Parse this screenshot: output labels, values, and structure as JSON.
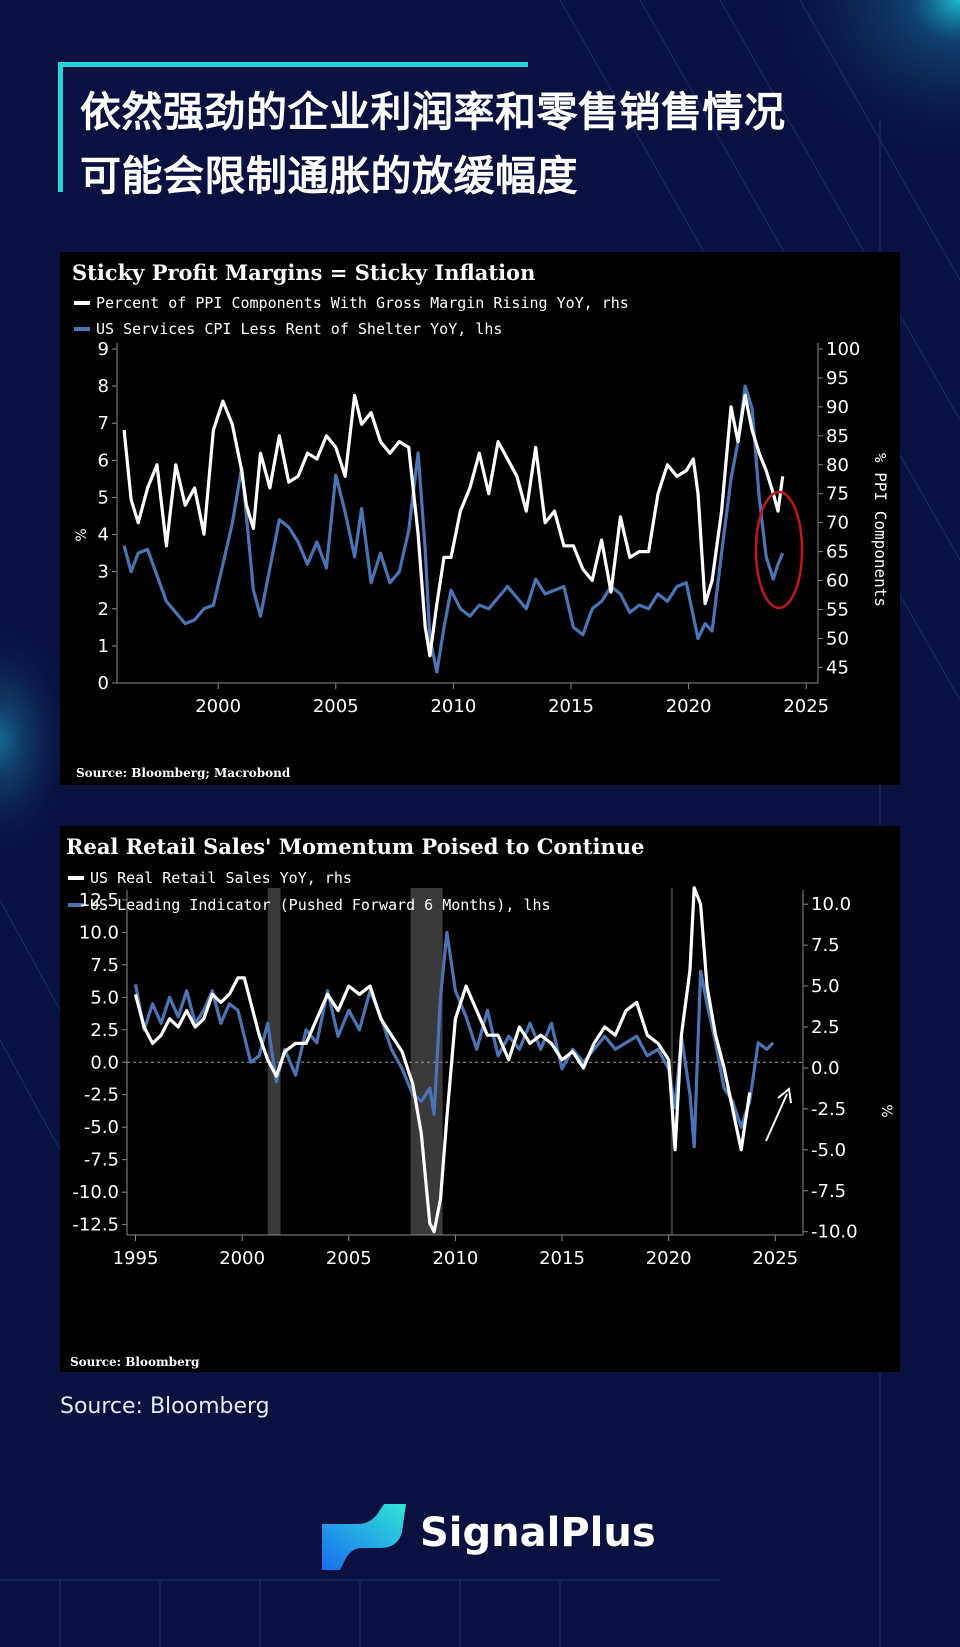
{
  "page": {
    "title_line1": "依然强劲的企业利润率和零售销售情况",
    "title_line2": "可能会限制通胀的放缓幅度",
    "source_caption": "Source: Bloomberg",
    "brand_name": "SignalPlus",
    "colors": {
      "background": "#0a1140",
      "accent": "#25d4dd",
      "series_white": "#ffffff",
      "series_blue": "#4a74b4",
      "highlight_red": "#c01818"
    }
  },
  "chart_data": [
    {
      "type": "line",
      "title": "Sticky Profit Margins = Sticky Inflation",
      "legend": [
        "Percent of PPI Components With Gross Margin Rising YoY, rhs",
        "US Services CPI Less Rent of Shelter YoY, lhs"
      ],
      "source": "Source: Bloomberg; Macrobond",
      "x_ticks": [
        "2000",
        "2005",
        "2010",
        "2015",
        "2020",
        "2025"
      ],
      "xlim": [
        1995.7,
        2025.5
      ],
      "left_axis": {
        "label": "%",
        "ticks": [
          "0",
          "1",
          "2",
          "3",
          "4",
          "5",
          "6",
          "7",
          "8",
          "9"
        ],
        "ylim": [
          0,
          9
        ]
      },
      "right_axis": {
        "label": "% PPI Components",
        "ticks": [
          "45",
          "50",
          "55",
          "60",
          "65",
          "70",
          "75",
          "80",
          "85",
          "90",
          "95",
          "100"
        ],
        "ylim": [
          42.3,
          100
        ]
      },
      "annotation": "red ellipse around 2023-2024 values",
      "series": [
        {
          "name": "Percent of PPI Components With Gross Margin Rising YoY",
          "axis": "right",
          "color": "#ffffff",
          "x": [
            1996.0,
            1996.3,
            1996.6,
            1997.0,
            1997.4,
            1997.8,
            1998.2,
            1998.6,
            1999.0,
            1999.4,
            1999.8,
            2000.2,
            2000.6,
            2001.0,
            2001.2,
            2001.5,
            2001.8,
            2002.2,
            2002.6,
            2003.0,
            2003.4,
            2003.8,
            2004.2,
            2004.6,
            2005.0,
            2005.4,
            2005.8,
            2006.1,
            2006.5,
            2006.9,
            2007.3,
            2007.7,
            2008.1,
            2008.5,
            2008.8,
            2009.0,
            2009.3,
            2009.6,
            2009.9,
            2010.3,
            2010.7,
            2011.1,
            2011.5,
            2011.9,
            2012.3,
            2012.7,
            2013.1,
            2013.5,
            2013.9,
            2014.3,
            2014.7,
            2015.1,
            2015.5,
            2015.9,
            2016.3,
            2016.7,
            2017.1,
            2017.5,
            2017.9,
            2018.3,
            2018.7,
            2019.1,
            2019.5,
            2019.9,
            2020.2,
            2020.4,
            2020.7,
            2021.0,
            2021.4,
            2021.8,
            2022.1,
            2022.4,
            2022.7,
            2023.0,
            2023.3,
            2023.6,
            2023.8,
            2024.0
          ],
          "values": [
            86,
            74,
            70,
            76,
            80,
            66,
            80,
            73,
            76,
            68,
            86,
            91,
            87,
            79,
            73,
            69,
            82,
            76,
            85,
            77,
            78,
            82,
            81,
            85,
            83,
            78,
            92,
            87,
            89,
            84,
            82,
            84,
            83,
            68,
            52,
            47,
            56,
            64,
            64,
            72,
            76,
            82,
            75,
            84,
            81,
            78,
            72,
            83,
            70,
            72,
            66,
            66,
            62,
            60,
            67,
            58,
            71,
            64,
            65,
            65,
            75,
            80,
            78,
            79,
            81,
            75,
            56,
            60,
            72,
            90,
            84,
            92,
            86,
            82,
            79,
            75,
            72,
            78
          ]
        },
        {
          "name": "US Services CPI Less Rent of Shelter YoY",
          "axis": "left",
          "color": "#4a74b4",
          "x": [
            1996.0,
            1996.3,
            1996.6,
            1997.0,
            1997.4,
            1997.8,
            1998.2,
            1998.6,
            1999.0,
            1999.4,
            1999.8,
            2000.2,
            2000.6,
            2001.0,
            2001.2,
            2001.5,
            2001.8,
            2002.2,
            2002.6,
            2003.0,
            2003.4,
            2003.8,
            2004.2,
            2004.6,
            2005.0,
            2005.4,
            2005.8,
            2006.1,
            2006.5,
            2006.9,
            2007.3,
            2007.7,
            2008.1,
            2008.5,
            2008.8,
            2009.0,
            2009.3,
            2009.6,
            2009.9,
            2010.3,
            2010.7,
            2011.1,
            2011.5,
            2011.9,
            2012.3,
            2012.7,
            2013.1,
            2013.5,
            2013.9,
            2014.3,
            2014.7,
            2015.1,
            2015.5,
            2015.9,
            2016.3,
            2016.7,
            2017.1,
            2017.5,
            2017.9,
            2018.3,
            2018.7,
            2019.1,
            2019.5,
            2019.9,
            2020.2,
            2020.4,
            2020.7,
            2021.0,
            2021.4,
            2021.8,
            2022.1,
            2022.4,
            2022.7,
            2023.0,
            2023.3,
            2023.6,
            2023.8,
            2024.0
          ],
          "values": [
            3.7,
            3.0,
            3.5,
            3.6,
            2.9,
            2.2,
            1.9,
            1.6,
            1.7,
            2.0,
            2.1,
            3.2,
            4.3,
            5.8,
            4.5,
            2.5,
            1.8,
            3.1,
            4.4,
            4.2,
            3.8,
            3.2,
            3.8,
            3.1,
            5.6,
            4.6,
            3.4,
            4.7,
            2.7,
            3.5,
            2.7,
            3.0,
            4.1,
            6.2,
            3.6,
            1.2,
            0.3,
            1.5,
            2.5,
            2.0,
            1.8,
            2.1,
            2.0,
            2.3,
            2.6,
            2.3,
            2.0,
            2.8,
            2.4,
            2.5,
            2.6,
            1.5,
            1.3,
            2.0,
            2.2,
            2.6,
            2.4,
            1.9,
            2.1,
            2.0,
            2.4,
            2.2,
            2.6,
            2.7,
            1.8,
            1.2,
            1.6,
            1.4,
            3.5,
            5.5,
            6.5,
            8.0,
            7.4,
            5.0,
            3.4,
            2.8,
            3.2,
            3.5
          ]
        }
      ]
    },
    {
      "type": "line",
      "title": "Real Retail Sales' Momentum Poised to Continue",
      "legend": [
        "US Real Retail Sales YoY, rhs",
        "US Leading Indicator (Pushed Forward 6 Months), lhs"
      ],
      "source": "Source: Bloomberg",
      "x_ticks": [
        "1995",
        "2000",
        "2005",
        "2010",
        "2015",
        "2020",
        "2025"
      ],
      "xlim": [
        1994.6,
        2026.3
      ],
      "left_axis": {
        "ticks": [
          "12.5",
          "10.0",
          "7.5",
          "5.0",
          "2.5",
          "0.0",
          "-2.5",
          "-5.0",
          "-7.5",
          "-10.0",
          "-12.5"
        ],
        "ylim": [
          -13.3,
          12.8
        ]
      },
      "right_axis": {
        "label": "%",
        "ticks": [
          "10.0",
          "7.5",
          "5.0",
          "2.5",
          "0.0",
          "-2.5",
          "-5.0",
          "-7.5",
          "-10.0"
        ],
        "ylim": [
          -10.2,
          10.5
        ]
      },
      "recessions": [
        [
          2001.2,
          2001.8
        ],
        [
          2007.9,
          2009.4
        ],
        [
          2020.1,
          2020.2
        ]
      ],
      "annotation": "arrow pointing up at the end of the series",
      "series": [
        {
          "name": "US Real Retail Sales YoY",
          "axis": "right",
          "color": "#ffffff",
          "x": [
            1995.0,
            1995.4,
            1995.8,
            1996.2,
            1996.6,
            1997.0,
            1997.4,
            1997.8,
            1998.2,
            1998.6,
            1999.0,
            1999.4,
            1999.8,
            2000.1,
            2000.4,
            2000.8,
            2001.2,
            2001.6,
            2002.0,
            2002.5,
            2003.0,
            2003.5,
            2004.0,
            2004.5,
            2005.0,
            2005.5,
            2006.0,
            2006.5,
            2007.0,
            2007.5,
            2008.0,
            2008.4,
            2008.8,
            2009.0,
            2009.3,
            2009.6,
            2010.0,
            2010.5,
            2011.0,
            2011.5,
            2012.0,
            2012.5,
            2013.0,
            2013.5,
            2014.0,
            2014.5,
            2015.0,
            2015.5,
            2016.0,
            2016.5,
            2017.0,
            2017.5,
            2018.0,
            2018.5,
            2019.0,
            2019.5,
            2020.0,
            2020.3,
            2020.6,
            2021.0,
            2021.2,
            2021.5,
            2021.8,
            2022.2,
            2022.6,
            2023.0,
            2023.4,
            2023.8
          ],
          "values": [
            4.5,
            2.5,
            1.5,
            2.0,
            3.0,
            2.5,
            3.5,
            2.5,
            3.0,
            4.5,
            4.0,
            4.5,
            5.5,
            5.5,
            4.0,
            2.0,
            0.5,
            -0.5,
            1.0,
            1.5,
            1.5,
            3.0,
            4.5,
            3.5,
            5.0,
            4.5,
            5.0,
            3.0,
            2.0,
            1.0,
            -1.0,
            -4.0,
            -9.5,
            -10.0,
            -8.0,
            -3.0,
            3.0,
            5.0,
            3.5,
            2.0,
            2.0,
            0.5,
            2.5,
            1.5,
            2.0,
            1.5,
            0.5,
            1.0,
            0.0,
            1.5,
            2.5,
            2.0,
            3.5,
            4.0,
            2.0,
            1.5,
            0.5,
            -5.0,
            2.0,
            6.0,
            11.0,
            10.0,
            5.0,
            2.0,
            0.0,
            -2.5,
            -5.0,
            -1.5
          ]
        },
        {
          "name": "US Leading Indicator (Pushed Forward 6 Months)",
          "axis": "left",
          "color": "#4a74b4",
          "x": [
            1995.0,
            1995.4,
            1995.8,
            1996.2,
            1996.6,
            1997.0,
            1997.4,
            1997.8,
            1998.2,
            1998.6,
            1999.0,
            1999.4,
            1999.8,
            2000.1,
            2000.4,
            2000.8,
            2001.2,
            2001.6,
            2002.0,
            2002.5,
            2003.0,
            2003.5,
            2004.0,
            2004.5,
            2005.0,
            2005.5,
            2006.0,
            2006.5,
            2007.0,
            2007.5,
            2008.0,
            2008.4,
            2008.8,
            2009.0,
            2009.3,
            2009.6,
            2010.0,
            2010.5,
            2011.0,
            2011.5,
            2012.0,
            2012.5,
            2013.0,
            2013.5,
            2014.0,
            2014.5,
            2015.0,
            2015.5,
            2016.0,
            2016.5,
            2017.0,
            2017.5,
            2018.0,
            2018.5,
            2019.0,
            2019.5,
            2020.0,
            2020.3,
            2020.6,
            2021.0,
            2021.2,
            2021.5,
            2021.8,
            2022.2,
            2022.6,
            2023.0,
            2023.4,
            2023.8,
            2024.2,
            2024.6,
            2024.9
          ],
          "values": [
            6.0,
            2.5,
            4.5,
            3.0,
            5.0,
            3.5,
            5.5,
            3.0,
            4.0,
            5.5,
            3.0,
            4.5,
            4.0,
            2.0,
            0.0,
            0.5,
            3.0,
            -1.5,
            1.0,
            -1.0,
            2.5,
            1.5,
            5.5,
            2.0,
            4.0,
            2.5,
            5.5,
            3.5,
            1.0,
            -0.5,
            -2.5,
            -3.0,
            -2.0,
            -4.0,
            5.0,
            10.0,
            5.5,
            3.5,
            1.0,
            4.0,
            0.5,
            2.0,
            1.0,
            3.0,
            1.0,
            3.0,
            -0.5,
            1.0,
            0.0,
            1.0,
            2.0,
            1.0,
            1.5,
            2.0,
            0.5,
            1.0,
            -0.5,
            -3.5,
            2.0,
            -2.5,
            -6.5,
            7.0,
            4.5,
            1.5,
            -2.0,
            -3.0,
            -5.0,
            -3.0,
            1.5,
            1.0,
            1.5
          ]
        }
      ]
    }
  ]
}
